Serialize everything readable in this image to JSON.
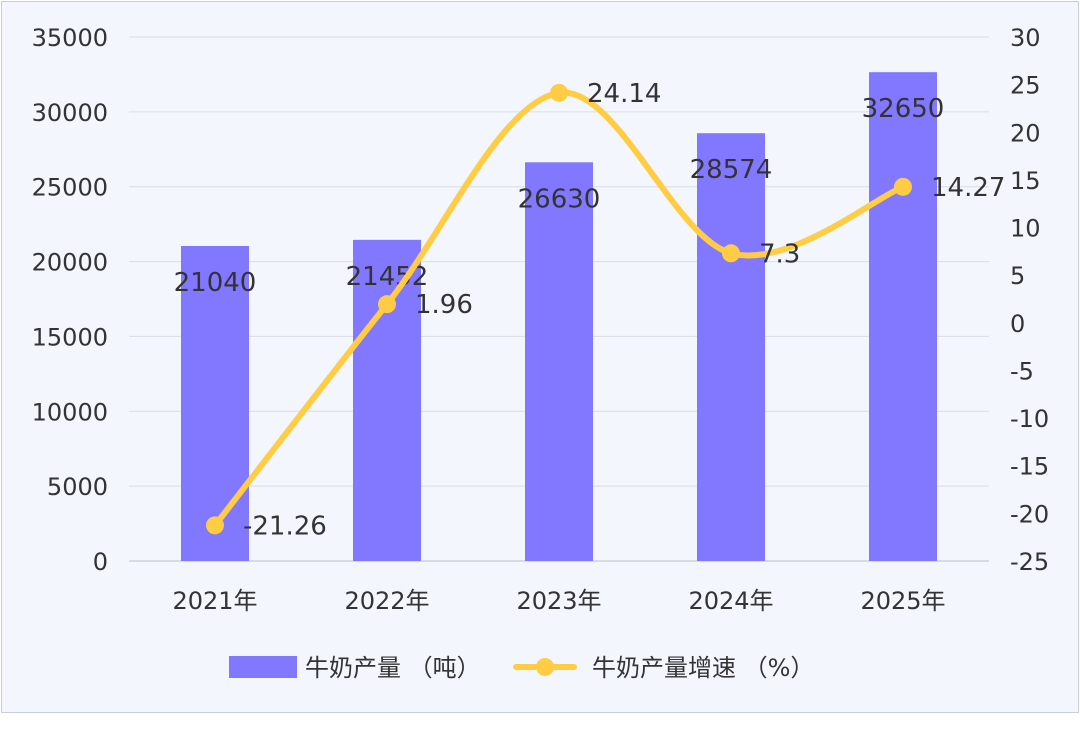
{
  "chart_data": {
    "type": "bar",
    "categories": [
      "2021年",
      "2022年",
      "2023年",
      "2024年",
      "2025年"
    ],
    "series": [
      {
        "name": "牛奶产量（吨）",
        "type": "bar",
        "axis": "left",
        "values": [
          21040,
          21452,
          26630,
          28574,
          32650
        ],
        "labels": [
          "21040",
          "21452",
          "26630",
          "28574",
          "32650"
        ]
      },
      {
        "name": "牛奶产量增速（%）",
        "type": "line",
        "axis": "right",
        "smooth": true,
        "values": [
          -21.26,
          1.96,
          24.14,
          7.3,
          14.27
        ],
        "labels": [
          "-21.26",
          "1.96",
          "24.14",
          "7.3",
          "14.27"
        ]
      }
    ],
    "y_left": {
      "min": 0,
      "max": 35000,
      "ticks": [
        "35000",
        "30000",
        "25000",
        "20000",
        "15000",
        "10000",
        "5000",
        "0"
      ]
    },
    "y_right": {
      "min": -25,
      "max": 30,
      "ticks": [
        "30",
        "25",
        "20",
        "15",
        "10",
        "5",
        "0",
        "-5",
        "-10",
        "-15",
        "-20",
        "-25"
      ]
    },
    "grid": true,
    "legend_position": "bottom",
    "colors": {
      "bar": "#8277ff",
      "line": "#ffcc44"
    }
  },
  "legend": {
    "bar_label": "牛奶产量 （吨）",
    "line_label": "牛奶产量增速 （%）"
  }
}
